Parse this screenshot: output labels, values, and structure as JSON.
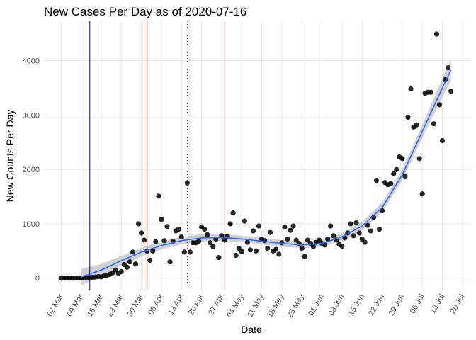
{
  "chart_data": {
    "type": "scatter",
    "title": "New Cases Per Day as of 2020-07-16",
    "x_label": "Date",
    "y_label": "New Counts Per Day",
    "color": "#000000",
    "x": [
      "02 Mar",
      "03 Mar",
      "04 Mar",
      "05 Mar",
      "06 Mar",
      "07 Mar",
      "08 Mar",
      "09 Mar",
      "10 Mar",
      "11 Mar",
      "12 Mar",
      "13 Mar",
      "14 Mar",
      "15 Mar",
      "16 Mar",
      "17 Mar",
      "18 Mar",
      "19 Mar",
      "20 Mar",
      "21 Mar",
      "22 Mar",
      "23 Mar",
      "24 Mar",
      "25 Mar",
      "26 Mar",
      "27 Mar",
      "28 Mar",
      "29 Mar",
      "30 Mar",
      "31 Mar",
      "01 Apr",
      "02 Apr",
      "03 Apr",
      "04 Apr",
      "05 Apr",
      "06 Apr",
      "07 Apr",
      "08 Apr",
      "09 Apr",
      "10 Apr",
      "11 Apr",
      "12 Apr",
      "13 Apr",
      "14 Apr",
      "15 Apr",
      "16 Apr",
      "17 Apr",
      "18 Apr",
      "19 Apr",
      "20 Apr",
      "21 Apr",
      "22 Apr",
      "23 Apr",
      "24 Apr",
      "25 Apr",
      "26 Apr",
      "27 Apr",
      "28 Apr",
      "29 Apr",
      "30 Apr",
      "01 May",
      "02 May",
      "03 May",
      "04 May",
      "05 May",
      "06 May",
      "07 May",
      "08 May",
      "09 May",
      "10 May",
      "11 May",
      "12 May",
      "13 May",
      "14 May",
      "15 May",
      "16 May",
      "17 May",
      "18 May",
      "19 May",
      "20 May",
      "21 May",
      "22 May",
      "23 May",
      "24 May",
      "25 May",
      "26 May",
      "27 May",
      "28 May",
      "29 May",
      "30 May",
      "31 May",
      "01 Jun",
      "02 Jun",
      "03 Jun",
      "04 Jun",
      "05 Jun",
      "06 Jun",
      "07 Jun",
      "08 Jun",
      "09 Jun",
      "10 Jun",
      "11 Jun",
      "12 Jun",
      "13 Jun",
      "14 Jun",
      "15 Jun",
      "16 Jun",
      "17 Jun",
      "18 Jun",
      "19 Jun",
      "20 Jun",
      "21 Jun",
      "22 Jun",
      "23 Jun",
      "24 Jun",
      "25 Jun",
      "26 Jun",
      "27 Jun",
      "28 Jun",
      "29 Jun",
      "30 Jun",
      "01 Jul",
      "02 Jul",
      "03 Jul",
      "04 Jul",
      "05 Jul",
      "06 Jul",
      "07 Jul",
      "08 Jul",
      "09 Jul",
      "10 Jul",
      "11 Jul",
      "12 Jul",
      "13 Jul",
      "14 Jul",
      "15 Jul",
      "16 Jul"
    ],
    "values": [
      0,
      0,
      0,
      0,
      0,
      0,
      2,
      3,
      5,
      8,
      10,
      15,
      20,
      30,
      25,
      40,
      50,
      70,
      100,
      150,
      90,
      120,
      250,
      200,
      300,
      480,
      260,
      1000,
      830,
      700,
      500,
      330,
      500,
      670,
      1510,
      1080,
      690,
      950,
      300,
      680,
      870,
      900,
      760,
      480,
      1750,
      480,
      650,
      650,
      680,
      940,
      900,
      800,
      650,
      580,
      720,
      380,
      780,
      700,
      770,
      1000,
      1200,
      420,
      550,
      490,
      1050,
      660,
      520,
      870,
      500,
      960,
      720,
      690,
      550,
      840,
      500,
      530,
      440,
      650,
      940,
      720,
      880,
      960,
      700,
      640,
      550,
      400,
      700,
      640,
      580,
      660,
      700,
      640,
      610,
      720,
      960,
      780,
      700,
      620,
      590,
      740,
      830,
      1000,
      780,
      1020,
      830,
      720,
      660,
      970,
      870,
      1120,
      1800,
      900,
      1240,
      1760,
      1720,
      1740,
      1920,
      2000,
      2230,
      2200,
      1880,
      2960,
      3480,
      2780,
      2820,
      2200,
      1550,
      3400,
      3420,
      3420,
      2840,
      4490,
      3190,
      2530,
      3650,
      3870,
      3440
    ],
    "trend": {
      "color": "#3366ff",
      "band_color": "#bebebe",
      "x": [
        "09 Mar",
        "16 Mar",
        "23 Mar",
        "30 Mar",
        "06 Apr",
        "13 Apr",
        "20 Apr",
        "27 Apr",
        "04 May",
        "11 May",
        "18 May",
        "25 May",
        "01 Jun",
        "08 Jun",
        "15 Jun",
        "22 Jun",
        "29 Jun",
        "06 Jul",
        "13 Jul",
        "16 Jul"
      ],
      "values": [
        20,
        150,
        320,
        480,
        600,
        690,
        740,
        750,
        720,
        680,
        640,
        610,
        640,
        760,
        960,
        1300,
        1900,
        2700,
        3500,
        3830
      ],
      "lower": [
        -130,
        40,
        230,
        400,
        530,
        620,
        670,
        680,
        660,
        620,
        580,
        550,
        580,
        690,
        880,
        1210,
        1800,
        2580,
        3330,
        3620
      ],
      "upper": [
        170,
        260,
        410,
        560,
        670,
        760,
        810,
        820,
        780,
        740,
        700,
        670,
        700,
        830,
        1040,
        1390,
        2000,
        2820,
        3670,
        4040
      ]
    },
    "vlines": [
      {
        "x": "12 Mar",
        "color": "#00008b",
        "dash": "solid"
      },
      {
        "x": "01 Apr",
        "color": "#cc0000",
        "dash": "solid"
      },
      {
        "x": "15 Apr",
        "color": "#cc0000",
        "dash": "dotted"
      },
      {
        "x": "28 Apr",
        "color": "#ffb6c1",
        "dash": "solid"
      }
    ],
    "xlim": [
      "25 Feb",
      "23 Jul"
    ],
    "xticks": [
      "02 Mar",
      "09 Mar",
      "16 Mar",
      "23 Mar",
      "30 Mar",
      "06 Apr",
      "13 Apr",
      "20 Apr",
      "27 Apr",
      "04 May",
      "11 May",
      "18 May",
      "25 May",
      "01 Jun",
      "08 Jun",
      "15 Jun",
      "22 Jun",
      "29 Jun",
      "06 Jul",
      "13 Jul",
      "20 Jul"
    ],
    "ylim": [
      -225,
      4725
    ],
    "yticks": [
      0,
      1000,
      2000,
      3000,
      4000
    ],
    "grid": true
  }
}
